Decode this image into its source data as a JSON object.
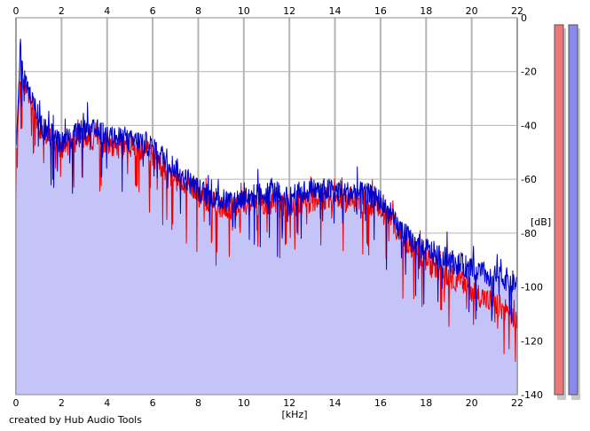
{
  "credit": "created by Hub Audio Tools",
  "chart_data": {
    "type": "area",
    "title": "",
    "xlabel": "[kHz]",
    "ylabel": "[dB]",
    "xlim": [
      0,
      22
    ],
    "ylim": [
      -140,
      0
    ],
    "x_ticks": [
      "0",
      "2",
      "4",
      "6",
      "8",
      "10",
      "12",
      "14",
      "16",
      "18",
      "20",
      "22"
    ],
    "y_ticks": [
      "0",
      "-20",
      "-40",
      "-60",
      "-80",
      "-100",
      "-120",
      "-140"
    ],
    "grid": true,
    "colors": {
      "fill": "#c4c4f8",
      "left_channel": "#ee0000",
      "right_channel": "#0000cc",
      "grid": "#b4b4b4",
      "meter_left": "#ee7777",
      "meter_right": "#8888ee"
    },
    "series": [
      {
        "x": [
          0,
          0.1,
          0.2,
          0.3,
          0.5,
          0.8,
          1,
          1.5,
          2,
          2.5,
          3,
          3.5,
          4,
          4.5,
          5,
          5.5,
          6,
          6.5,
          7,
          7.5,
          8,
          8.5,
          9,
          9.5,
          10,
          10.5,
          11,
          11.5,
          12,
          12.5,
          13,
          13.5,
          14,
          14.5,
          15,
          15.5,
          16,
          16.5,
          17,
          17.5,
          18,
          18.5,
          19,
          19.5,
          20,
          20.5,
          21,
          21.5,
          22
        ],
        "y": [
          -55,
          -35,
          -22,
          -24,
          -28,
          -34,
          -42,
          -45,
          -48,
          -46,
          -44,
          -45,
          -47,
          -47,
          -48,
          -49,
          -51,
          -56,
          -60,
          -63,
          -66,
          -68,
          -70,
          -71,
          -70,
          -69,
          -69,
          -69,
          -70,
          -69,
          -68,
          -67,
          -67,
          -68,
          -68,
          -69,
          -70,
          -75,
          -82,
          -87,
          -90,
          -93,
          -96,
          -98,
          -101,
          -104,
          -106,
          -109,
          -114
        ]
      },
      {
        "x": [
          0,
          0.1,
          0.2,
          0.3,
          0.5,
          0.8,
          1,
          1.5,
          2,
          2.5,
          3,
          3.5,
          4,
          4.5,
          5,
          5.5,
          6,
          6.5,
          7,
          7.5,
          8,
          8.5,
          9,
          9.5,
          10,
          10.5,
          11,
          11.5,
          12,
          12.5,
          13,
          13.5,
          14,
          14.5,
          15,
          15.5,
          16,
          16.5,
          17,
          17.5,
          18,
          18.5,
          19,
          19.5,
          20,
          20.5,
          21,
          21.5,
          22
        ],
        "y": [
          -50,
          -30,
          -8,
          -20,
          -26,
          -32,
          -40,
          -43,
          -46,
          -44,
          -42,
          -42,
          -44,
          -45,
          -46,
          -46,
          -48,
          -52,
          -56,
          -60,
          -64,
          -66,
          -68,
          -68,
          -67,
          -66,
          -65,
          -65,
          -66,
          -65,
          -64,
          -64,
          -64,
          -65,
          -65,
          -66,
          -68,
          -75,
          -80,
          -84,
          -86,
          -88,
          -90,
          -92,
          -93,
          -95,
          -96,
          -97,
          -99
        ]
      }
    ]
  }
}
